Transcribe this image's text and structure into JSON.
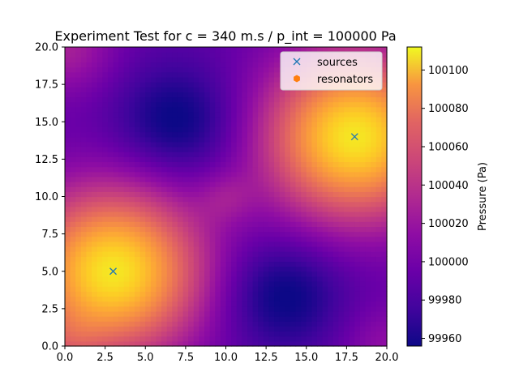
{
  "chart_data": {
    "type": "heatmap",
    "title": "Experiment Test for c = 340 m.s / p_int = 100000 Pa",
    "xlabel": "",
    "ylabel": "",
    "xlim": [
      0,
      20
    ],
    "ylim": [
      0,
      20
    ],
    "x_ticks": [
      "0.0",
      "2.5",
      "5.0",
      "7.5",
      "10.0",
      "12.5",
      "15.0",
      "17.5",
      "20.0"
    ],
    "y_ticks": [
      "0.0",
      "2.5",
      "5.0",
      "7.5",
      "10.0",
      "12.5",
      "15.0",
      "17.5",
      "20.0"
    ],
    "colormap": "plasma",
    "colorbar": {
      "label": "Pressure (Pa)",
      "range": [
        99956,
        100112
      ],
      "ticks": [
        "99960",
        "99980",
        "100000",
        "100020",
        "100040",
        "100060",
        "100080",
        "100100"
      ]
    },
    "series": [
      {
        "name": "sources",
        "marker": "x",
        "color": "#1f77b4",
        "points": [
          [
            3,
            5
          ],
          [
            18,
            14
          ]
        ]
      },
      {
        "name": "resonators",
        "marker": "hexagon",
        "color": "#ff7f0e",
        "points": []
      }
    ],
    "legend_position": "top-right",
    "grid": false
  }
}
